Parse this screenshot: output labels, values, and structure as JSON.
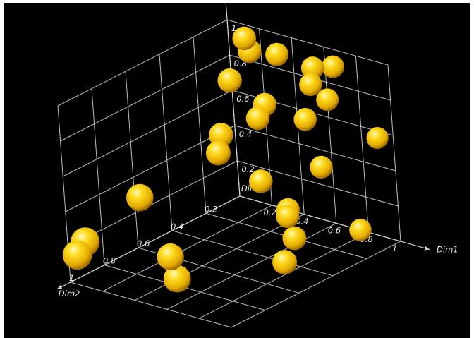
{
  "chart_data": {
    "type": "scatter",
    "dimensions": 3,
    "render": "3d-spheres",
    "background_color": "#000000",
    "grid_color": "#bdbdbd",
    "marker_color": "#f5c400",
    "grid": true,
    "axes": {
      "x": {
        "label": "Dim1",
        "range": [
          0,
          1
        ],
        "ticks": [
          "0.2",
          "0.4",
          "0.6",
          "0.8",
          "1"
        ]
      },
      "y": {
        "label": "Dim2",
        "range": [
          0,
          1
        ],
        "ticks": [
          "0.2",
          "0.4",
          "0.6",
          "0.8",
          "1"
        ]
      },
      "z": {
        "label": "Dim4",
        "range": [
          0,
          1
        ],
        "ticks": [
          "0.2",
          "0.4",
          "0.6",
          "0.8",
          "1"
        ]
      }
    },
    "points": [
      {
        "x": 0.1,
        "y": 0.0,
        "z": 0.92
      },
      {
        "x": 0.15,
        "y": 0.02,
        "z": 0.87
      },
      {
        "x": 0.3,
        "y": 0.0,
        "z": 0.88
      },
      {
        "x": 0.52,
        "y": 0.0,
        "z": 0.86
      },
      {
        "x": 0.65,
        "y": 0.0,
        "z": 0.9
      },
      {
        "x": 0.1,
        "y": 0.1,
        "z": 0.73
      },
      {
        "x": 0.5,
        "y": 0.0,
        "z": 0.76
      },
      {
        "x": 0.6,
        "y": 0.0,
        "z": 0.7
      },
      {
        "x": 0.2,
        "y": 0.0,
        "z": 0.57
      },
      {
        "x": 0.45,
        "y": 0.0,
        "z": 0.55
      },
      {
        "x": 0.9,
        "y": 0.0,
        "z": 0.56
      },
      {
        "x": 0.15,
        "y": 0.0,
        "z": 0.48
      },
      {
        "x": 0.02,
        "y": 0.1,
        "z": 0.4
      },
      {
        "x": 0.05,
        "y": 0.15,
        "z": 0.33
      },
      {
        "x": 0.0,
        "y": 0.57,
        "z": 0.27
      },
      {
        "x": 0.53,
        "y": 0.0,
        "z": 0.3
      },
      {
        "x": 0.14,
        "y": 0.0,
        "z": 0.12
      },
      {
        "x": 0.0,
        "y": 0.9,
        "z": 0.18
      },
      {
        "x": 0.0,
        "y": 0.95,
        "z": 0.13
      },
      {
        "x": 0.3,
        "y": 0.0,
        "z": 0.0
      },
      {
        "x": 0.35,
        "y": 0.05,
        "z": 0.0
      },
      {
        "x": 0.75,
        "y": 0.0,
        "z": 0.0
      },
      {
        "x": 0.55,
        "y": 0.2,
        "z": 0.0
      },
      {
        "x": 0.2,
        "y": 0.6,
        "z": 0.0
      },
      {
        "x": 0.7,
        "y": 0.4,
        "z": 0.0
      },
      {
        "x": 0.4,
        "y": 0.75,
        "z": 0.0
      }
    ]
  }
}
